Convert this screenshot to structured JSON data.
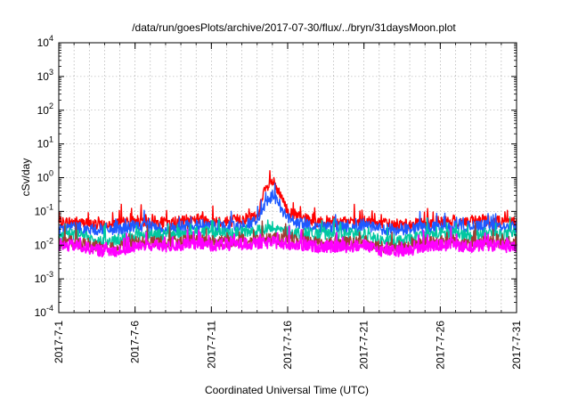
{
  "chart_data": {
    "type": "line",
    "title": "/data/run/goesPlots/archive/2017-07-30/flux/../bryn/31daysMoon.plot",
    "xlabel": "Coordinated Universal Time (UTC)",
    "ylabel": "cSv/day",
    "yscale": "log",
    "ylim": [
      0.0001,
      10000
    ],
    "xlim": [
      "2017-07-01",
      "2017-07-31"
    ],
    "x_ticks": [
      "2017-7-1",
      "2017-7-6",
      "2017-7-11",
      "2017-7-16",
      "2017-7-21",
      "2017-7-26",
      "2017-7-31"
    ],
    "x_tick_dates": [
      "2017-07-01",
      "2017-07-06",
      "2017-07-11",
      "2017-07-16",
      "2017-07-21",
      "2017-07-26",
      "2017-07-31"
    ],
    "y_ticks": [
      {
        "value": 0.0001,
        "base": "10",
        "exp": "-4"
      },
      {
        "value": 0.001,
        "base": "10",
        "exp": "-3"
      },
      {
        "value": 0.01,
        "base": "10",
        "exp": "-2"
      },
      {
        "value": 0.1,
        "base": "10",
        "exp": "-1"
      },
      {
        "value": 1,
        "base": "10",
        "exp": "0"
      },
      {
        "value": 10,
        "base": "10",
        "exp": "1"
      },
      {
        "value": 100,
        "base": "10",
        "exp": "2"
      },
      {
        "value": 1000,
        "base": "10",
        "exp": "3"
      },
      {
        "value": 10000,
        "base": "10",
        "exp": "4"
      }
    ],
    "grid": true,
    "legend": "none",
    "series": [
      {
        "color": "#ff0000",
        "values": [
          [
            "2017-07-01",
            0.045
          ],
          [
            "2017-07-02",
            0.05
          ],
          [
            "2017-07-03",
            0.04
          ],
          [
            "2017-07-04",
            0.042
          ],
          [
            "2017-07-05",
            0.045
          ],
          [
            "2017-07-06",
            0.05
          ],
          [
            "2017-07-07",
            0.05
          ],
          [
            "2017-07-08",
            0.045
          ],
          [
            "2017-07-09",
            0.05
          ],
          [
            "2017-07-10",
            0.06
          ],
          [
            "2017-07-11",
            0.055
          ],
          [
            "2017-07-12",
            0.05
          ],
          [
            "2017-07-13",
            0.06
          ],
          [
            "2017-07-14",
            0.07
          ],
          [
            "2017-07-14T12:00",
            0.4
          ],
          [
            "2017-07-15",
            0.75
          ],
          [
            "2017-07-15T12:00",
            0.3
          ],
          [
            "2017-07-16",
            0.1
          ],
          [
            "2017-07-17",
            0.06
          ],
          [
            "2017-07-18",
            0.05
          ],
          [
            "2017-07-19",
            0.05
          ],
          [
            "2017-07-20",
            0.045
          ],
          [
            "2017-07-21",
            0.05
          ],
          [
            "2017-07-22",
            0.045
          ],
          [
            "2017-07-23",
            0.04
          ],
          [
            "2017-07-24",
            0.04
          ],
          [
            "2017-07-25",
            0.045
          ],
          [
            "2017-07-26",
            0.05
          ],
          [
            "2017-07-27",
            0.05
          ],
          [
            "2017-07-28",
            0.05
          ],
          [
            "2017-07-29",
            0.055
          ],
          [
            "2017-07-30",
            0.05
          ],
          [
            "2017-07-31",
            0.05
          ]
        ]
      },
      {
        "color": "#1e5aff",
        "values": [
          [
            "2017-07-01",
            0.03
          ],
          [
            "2017-07-02",
            0.035
          ],
          [
            "2017-07-03",
            0.028
          ],
          [
            "2017-07-04",
            0.03
          ],
          [
            "2017-07-05",
            0.03
          ],
          [
            "2017-07-06",
            0.035
          ],
          [
            "2017-07-07",
            0.035
          ],
          [
            "2017-07-08",
            0.03
          ],
          [
            "2017-07-09",
            0.035
          ],
          [
            "2017-07-10",
            0.04
          ],
          [
            "2017-07-11",
            0.038
          ],
          [
            "2017-07-12",
            0.035
          ],
          [
            "2017-07-13",
            0.04
          ],
          [
            "2017-07-14",
            0.05
          ],
          [
            "2017-07-14T12:00",
            0.15
          ],
          [
            "2017-07-15",
            0.3
          ],
          [
            "2017-07-15T12:00",
            0.15
          ],
          [
            "2017-07-16",
            0.06
          ],
          [
            "2017-07-17",
            0.04
          ],
          [
            "2017-07-18",
            0.035
          ],
          [
            "2017-07-19",
            0.035
          ],
          [
            "2017-07-20",
            0.032
          ],
          [
            "2017-07-21",
            0.035
          ],
          [
            "2017-07-22",
            0.032
          ],
          [
            "2017-07-23",
            0.028
          ],
          [
            "2017-07-24",
            0.03
          ],
          [
            "2017-07-25",
            0.032
          ],
          [
            "2017-07-26",
            0.035
          ],
          [
            "2017-07-27",
            0.035
          ],
          [
            "2017-07-28",
            0.035
          ],
          [
            "2017-07-29",
            0.038
          ],
          [
            "2017-07-30",
            0.035
          ],
          [
            "2017-07-31",
            0.035
          ]
        ]
      },
      {
        "color": "#00c8a0",
        "values": [
          [
            "2017-07-01",
            0.02
          ],
          [
            "2017-07-02",
            0.022
          ],
          [
            "2017-07-03",
            0.016
          ],
          [
            "2017-07-04",
            0.012
          ],
          [
            "2017-07-05",
            0.015
          ],
          [
            "2017-07-06",
            0.02
          ],
          [
            "2017-07-07",
            0.022
          ],
          [
            "2017-07-08",
            0.02
          ],
          [
            "2017-07-09",
            0.022
          ],
          [
            "2017-07-10",
            0.025
          ],
          [
            "2017-07-11",
            0.024
          ],
          [
            "2017-07-12",
            0.022
          ],
          [
            "2017-07-13",
            0.024
          ],
          [
            "2017-07-14",
            0.026
          ],
          [
            "2017-07-15",
            0.03
          ],
          [
            "2017-07-16",
            0.025
          ],
          [
            "2017-07-17",
            0.022
          ],
          [
            "2017-07-18",
            0.02
          ],
          [
            "2017-07-19",
            0.02
          ],
          [
            "2017-07-20",
            0.02
          ],
          [
            "2017-07-21",
            0.022
          ],
          [
            "2017-07-22",
            0.014
          ],
          [
            "2017-07-23",
            0.012
          ],
          [
            "2017-07-24",
            0.015
          ],
          [
            "2017-07-25",
            0.02
          ],
          [
            "2017-07-26",
            0.022
          ],
          [
            "2017-07-27",
            0.022
          ],
          [
            "2017-07-28",
            0.02
          ],
          [
            "2017-07-29",
            0.022
          ],
          [
            "2017-07-30",
            0.02
          ],
          [
            "2017-07-31",
            0.02
          ]
        ]
      },
      {
        "color": "#a03c32",
        "values": [
          [
            "2017-07-01",
            0.012
          ],
          [
            "2017-07-02",
            0.013
          ],
          [
            "2017-07-03",
            0.01
          ],
          [
            "2017-07-04",
            0.008
          ],
          [
            "2017-07-05",
            0.009
          ],
          [
            "2017-07-06",
            0.012
          ],
          [
            "2017-07-07",
            0.013
          ],
          [
            "2017-07-08",
            0.012
          ],
          [
            "2017-07-09",
            0.013
          ],
          [
            "2017-07-10",
            0.014
          ],
          [
            "2017-07-11",
            0.013
          ],
          [
            "2017-07-12",
            0.013
          ],
          [
            "2017-07-13",
            0.014
          ],
          [
            "2017-07-14",
            0.015
          ],
          [
            "2017-07-15",
            0.016
          ],
          [
            "2017-07-16",
            0.014
          ],
          [
            "2017-07-17",
            0.013
          ],
          [
            "2017-07-18",
            0.012
          ],
          [
            "2017-07-19",
            0.012
          ],
          [
            "2017-07-20",
            0.012
          ],
          [
            "2017-07-21",
            0.013
          ],
          [
            "2017-07-22",
            0.009
          ],
          [
            "2017-07-23",
            0.008
          ],
          [
            "2017-07-24",
            0.009
          ],
          [
            "2017-07-25",
            0.012
          ],
          [
            "2017-07-26",
            0.013
          ],
          [
            "2017-07-27",
            0.013
          ],
          [
            "2017-07-28",
            0.012
          ],
          [
            "2017-07-29",
            0.013
          ],
          [
            "2017-07-30",
            0.012
          ],
          [
            "2017-07-31",
            0.012
          ]
        ]
      },
      {
        "color": "#ff00ff",
        "values": [
          [
            "2017-07-01",
            0.009
          ],
          [
            "2017-07-02",
            0.01
          ],
          [
            "2017-07-03",
            0.008
          ],
          [
            "2017-07-04",
            0.0065
          ],
          [
            "2017-07-05",
            0.007
          ],
          [
            "2017-07-06",
            0.009
          ],
          [
            "2017-07-07",
            0.01
          ],
          [
            "2017-07-08",
            0.009
          ],
          [
            "2017-07-09",
            0.01
          ],
          [
            "2017-07-10",
            0.011
          ],
          [
            "2017-07-11",
            0.01
          ],
          [
            "2017-07-12",
            0.01
          ],
          [
            "2017-07-13",
            0.011
          ],
          [
            "2017-07-14",
            0.011
          ],
          [
            "2017-07-15",
            0.012
          ],
          [
            "2017-07-16",
            0.011
          ],
          [
            "2017-07-17",
            0.01
          ],
          [
            "2017-07-18",
            0.009
          ],
          [
            "2017-07-19",
            0.009
          ],
          [
            "2017-07-20",
            0.009
          ],
          [
            "2017-07-21",
            0.01
          ],
          [
            "2017-07-22",
            0.007
          ],
          [
            "2017-07-23",
            0.0065
          ],
          [
            "2017-07-24",
            0.007
          ],
          [
            "2017-07-25",
            0.009
          ],
          [
            "2017-07-26",
            0.01
          ],
          [
            "2017-07-27",
            0.01
          ],
          [
            "2017-07-28",
            0.009
          ],
          [
            "2017-07-29",
            0.01
          ],
          [
            "2017-07-30",
            0.009
          ],
          [
            "2017-07-31",
            0.009
          ]
        ]
      }
    ]
  }
}
